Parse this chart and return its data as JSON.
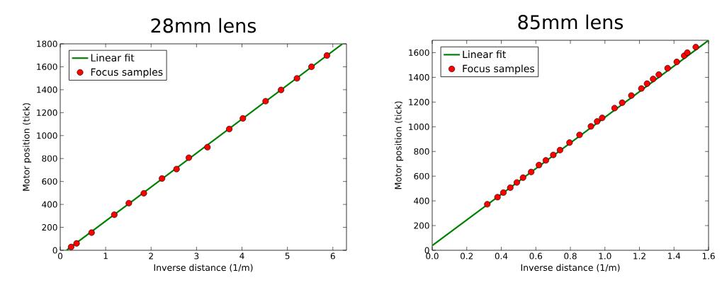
{
  "chart_data": [
    {
      "type": "scatter",
      "title": "28mm lens",
      "xlabel": "Inverse distance (1/m)",
      "ylabel": "Motor position (tick)",
      "xlim": [
        0,
        6.3
      ],
      "ylim": [
        0,
        1800
      ],
      "xticks": [
        0,
        1,
        2,
        3,
        4,
        5,
        6
      ],
      "yticks": [
        0,
        200,
        400,
        600,
        800,
        1000,
        1200,
        1400,
        1600,
        1800
      ],
      "legend": "top left",
      "grid": false,
      "series": [
        {
          "name": "Linear fit",
          "type": "line",
          "color": "#008000",
          "marker": "none",
          "x": [
            0.14,
            6.21
          ],
          "values": [
            0,
            1799
          ]
        },
        {
          "name": "Focus samples",
          "type": "scatter",
          "color": "#ff0000",
          "marker": "circle",
          "x": [
            0.24,
            0.36,
            0.69,
            1.19,
            1.51,
            1.84,
            2.24,
            2.56,
            2.83,
            3.24,
            3.72,
            4.02,
            4.52,
            4.86,
            5.21,
            5.53,
            5.87
          ],
          "values": [
            29,
            60,
            154,
            310,
            411,
            497,
            626,
            708,
            807,
            899,
            1057,
            1150,
            1300,
            1398,
            1499,
            1600,
            1698
          ]
        }
      ]
    },
    {
      "type": "scatter",
      "title": "85mm lens",
      "xlabel": "Inverse distance (1/m)",
      "ylabel": "Motor position (tick)",
      "xlim": [
        0,
        1.6
      ],
      "ylim": [
        0,
        1700
      ],
      "xticks": [
        {
          "value": 0,
          "label": "0.0"
        },
        {
          "value": 0.2,
          "label": "0.2"
        },
        {
          "value": 0.4,
          "label": "0.4"
        },
        {
          "value": 0.6,
          "label": "0.6"
        },
        {
          "value": 0.8,
          "label": "0.8"
        },
        {
          "value": 1,
          "label": "1.0"
        },
        {
          "value": 1.2,
          "label": "1.2"
        },
        {
          "value": 1.4,
          "label": "1.4"
        },
        {
          "value": 1.6,
          "label": "1.6"
        }
      ],
      "yticks": [
        0,
        200,
        400,
        600,
        800,
        1000,
        1200,
        1400,
        1600
      ],
      "legend": "top left",
      "grid": false,
      "series": [
        {
          "name": "Linear fit",
          "type": "line",
          "color": "#008000",
          "marker": "none",
          "x": [
            0,
            1.6
          ],
          "values": [
            38,
            1700
          ]
        },
        {
          "name": "Focus samples",
          "type": "scatter",
          "color": "#ff0000",
          "marker": "circle",
          "x": [
            0.319,
            0.378,
            0.412,
            0.452,
            0.49,
            0.526,
            0.573,
            0.618,
            0.658,
            0.701,
            0.74,
            0.795,
            0.853,
            0.919,
            0.955,
            0.984,
            1.056,
            1.1,
            1.153,
            1.211,
            1.244,
            1.279,
            1.312,
            1.363,
            1.416,
            1.459,
            1.477,
            1.526
          ],
          "values": [
            373,
            430,
            467,
            507,
            549,
            588,
            634,
            690,
            728,
            772,
            811,
            872,
            934,
            1003,
            1043,
            1072,
            1151,
            1195,
            1253,
            1310,
            1349,
            1387,
            1422,
            1474,
            1525,
            1575,
            1600,
            1645
          ]
        }
      ]
    }
  ]
}
